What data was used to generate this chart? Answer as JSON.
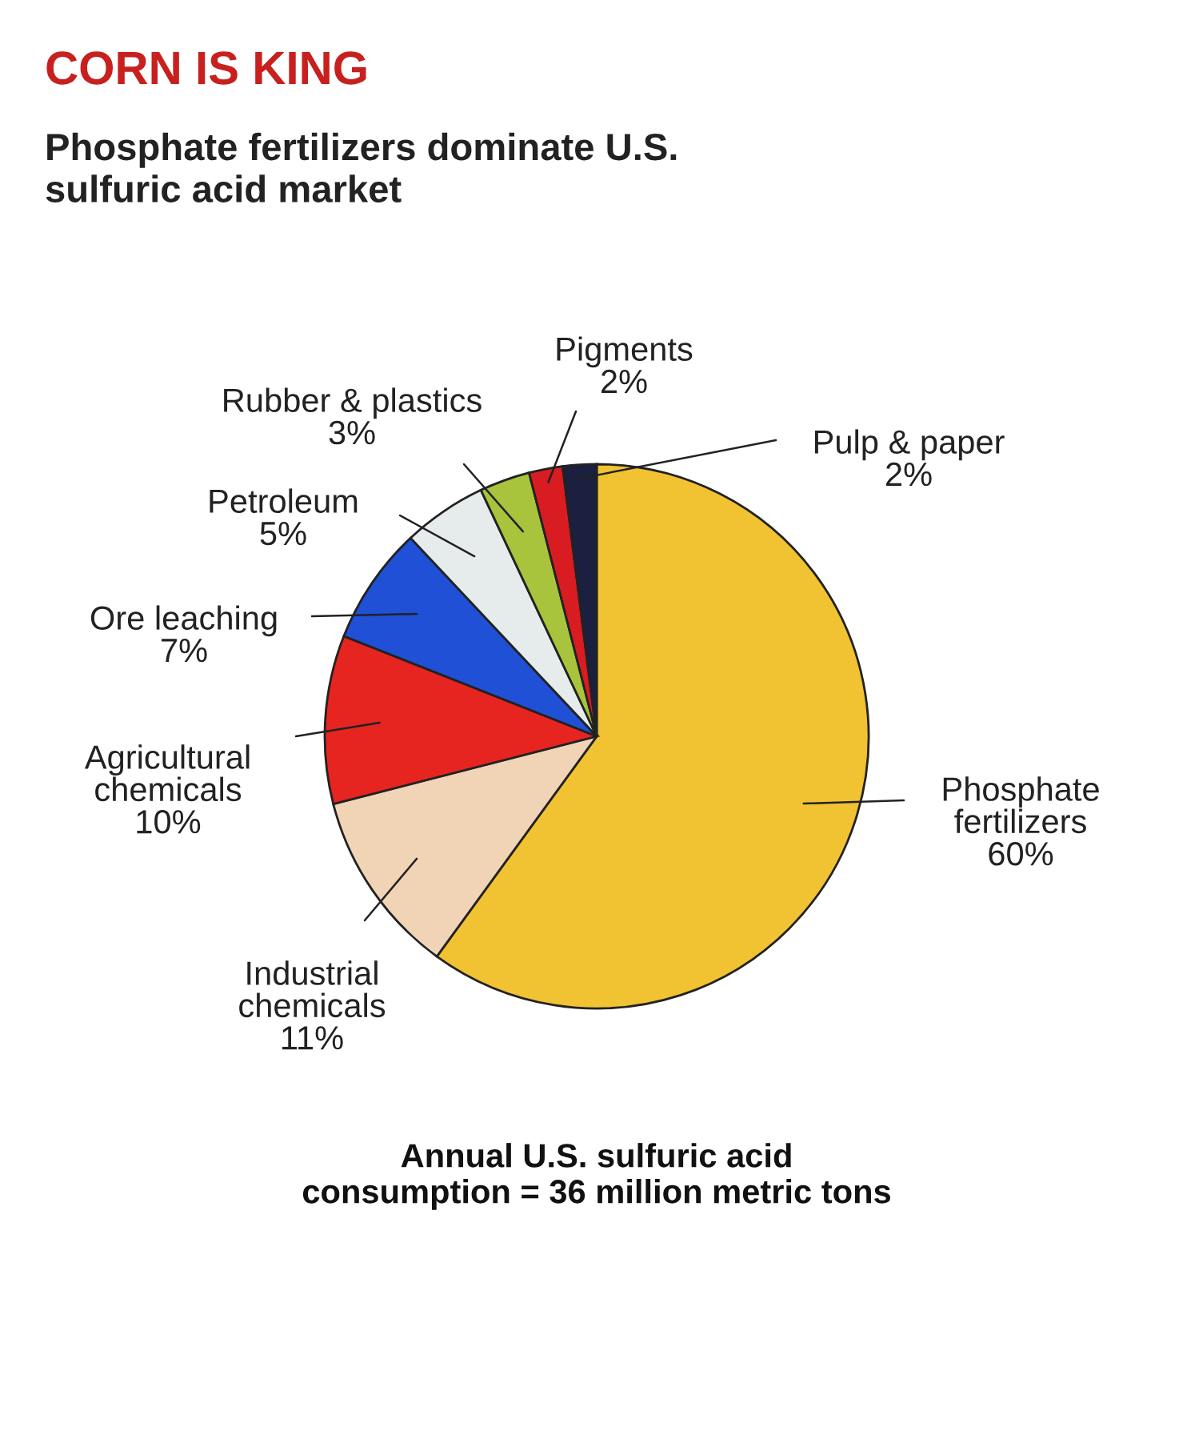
{
  "chart_data": {
    "type": "pie",
    "title": "CORN IS KING",
    "subtitle": "Phosphate fertilizers dominate U.S.\nsulfuric acid market",
    "categories": [
      "Phosphate\nfertilizers",
      "Industrial\nchemicals",
      "Agricultural\nchemicals",
      "Ore leaching",
      "Petroleum",
      "Rubber & plastics",
      "Pigments",
      "Pulp & paper"
    ],
    "values": [
      60,
      11,
      10,
      7,
      5,
      3,
      2,
      2
    ],
    "colors": [
      "#f1c232",
      "#f1d4b6",
      "#e62420",
      "#1f50d6",
      "#e6ebeb",
      "#a8c43c",
      "#d81c22",
      "#1b2040"
    ],
    "value_labels": [
      "60%",
      "11%",
      "10%",
      "7%",
      "5%",
      "3%",
      "2%",
      "2%"
    ],
    "annotations": [
      "Annual U.S. sulfuric acid\nconsumption = 36 million metric tons"
    ]
  }
}
